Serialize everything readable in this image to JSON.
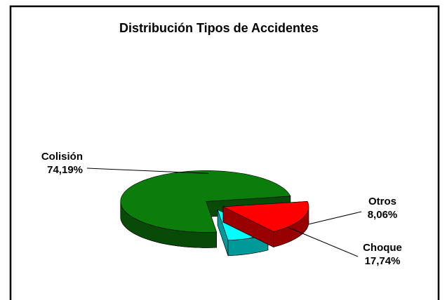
{
  "chart_data": {
    "type": "pie3d",
    "title": "Distribución Tipos de Accidentes",
    "categories": [
      "Colisión",
      "Choque",
      "Otros"
    ],
    "values": [
      74.19,
      17.74,
      8.06
    ],
    "value_labels": [
      "74,19%",
      "17,74%",
      "8,06%"
    ],
    "colors": [
      "#0b7d0b",
      "#ff0000",
      "#00ffff"
    ]
  }
}
